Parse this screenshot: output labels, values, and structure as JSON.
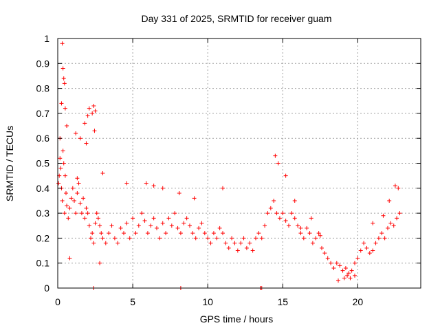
{
  "chart_data": {
    "type": "scatter",
    "title": "Day 331 of 2025, SRMTID for receiver guam",
    "xlabel": "GPS time / hours",
    "ylabel": "SRMTID / TECUs",
    "xlim": [
      0,
      24.2
    ],
    "ylim": [
      0,
      1
    ],
    "xticks": [
      0,
      5,
      10,
      15,
      20
    ],
    "xtick_labels": [
      "0",
      "5",
      "10",
      "15",
      "20"
    ],
    "yticks": [
      0,
      0.1,
      0.2,
      0.3,
      0.4,
      0.5,
      0.6,
      0.7,
      0.8,
      0.9,
      1
    ],
    "ytick_labels": [
      "0",
      "0.1",
      "0.2",
      "0.3",
      "0.4",
      "0.5",
      "0.6",
      "0.7",
      "0.8",
      "0.9",
      "1"
    ],
    "grid": true,
    "marker": "+",
    "color": "#ff0000",
    "series": [
      {
        "name": "SRMTID",
        "x": [
          0.05,
          0.1,
          0.15,
          0.2,
          0.25,
          0.3,
          0.35,
          0.4,
          0.45,
          0.5,
          0.55,
          0.6,
          0.7,
          0.8,
          0.9,
          1.0,
          1.1,
          1.2,
          1.3,
          1.4,
          1.5,
          1.6,
          1.7,
          1.8,
          1.9,
          2.0,
          2.1,
          2.2,
          2.3,
          2.4,
          2.5,
          2.6,
          2.7,
          2.8,
          2.9,
          3.0,
          3.2,
          3.4,
          3.6,
          3.8,
          4.0,
          4.2,
          4.4,
          4.6,
          4.8,
          5.0,
          5.2,
          5.4,
          5.6,
          5.8,
          6.0,
          6.2,
          6.4,
          6.6,
          6.8,
          7.0,
          7.2,
          7.4,
          7.6,
          7.8,
          8.0,
          8.2,
          8.4,
          8.6,
          8.8,
          9.0,
          9.2,
          9.4,
          9.6,
          9.8,
          10.0,
          10.2,
          10.4,
          10.6,
          10.8,
          11.0,
          11.2,
          11.4,
          11.6,
          11.8,
          12.0,
          12.2,
          12.4,
          12.6,
          12.8,
          13.0,
          13.2,
          13.4,
          13.6,
          13.8,
          14.0,
          14.2,
          14.4,
          14.6,
          14.8,
          15.0,
          15.2,
          15.4,
          15.6,
          15.8,
          16.0,
          16.2,
          16.4,
          16.6,
          16.8,
          17.0,
          17.2,
          17.4,
          17.6,
          17.8,
          18.0,
          18.2,
          18.4,
          18.6,
          18.8,
          19.0,
          19.2,
          19.4,
          19.6,
          19.8,
          20.0,
          20.2,
          20.4,
          20.6,
          20.8,
          21.0,
          21.2,
          21.4,
          21.6,
          21.8,
          22.0,
          22.2,
          22.4,
          22.6,
          22.8,
          0.3,
          0.35,
          0.4,
          0.45,
          0.25,
          0.5,
          0.15,
          0.6,
          1.2,
          1.5,
          1.8,
          2.0,
          2.1,
          2.3,
          2.4,
          2.5,
          2.45,
          1.9,
          1.3,
          0.8,
          2.8,
          3.0,
          4.6,
          5.9,
          6.4,
          7.0,
          8.1,
          9.1,
          11.0,
          14.5,
          14.7,
          15.2,
          15.8,
          16.2,
          16.9,
          17.5,
          18.7,
          19.1,
          19.3,
          19.5,
          19.8,
          21.0,
          21.7,
          22.1,
          22.5,
          22.7,
          2.4,
          8.2,
          13.5,
          13.6
        ],
        "y": [
          0.42,
          0.45,
          0.52,
          0.48,
          0.4,
          0.35,
          0.55,
          0.5,
          0.3,
          0.45,
          0.38,
          0.33,
          0.28,
          0.32,
          0.36,
          0.4,
          0.35,
          0.3,
          0.38,
          0.42,
          0.34,
          0.3,
          0.36,
          0.28,
          0.32,
          0.3,
          0.25,
          0.2,
          0.22,
          0.18,
          0.26,
          0.3,
          0.28,
          0.25,
          0.22,
          0.2,
          0.18,
          0.22,
          0.25,
          0.2,
          0.18,
          0.24,
          0.22,
          0.26,
          0.2,
          0.28,
          0.22,
          0.25,
          0.3,
          0.27,
          0.22,
          0.25,
          0.28,
          0.24,
          0.2,
          0.26,
          0.22,
          0.28,
          0.25,
          0.3,
          0.24,
          0.22,
          0.26,
          0.28,
          0.25,
          0.22,
          0.2,
          0.24,
          0.26,
          0.22,
          0.2,
          0.18,
          0.22,
          0.2,
          0.24,
          0.22,
          0.18,
          0.16,
          0.2,
          0.18,
          0.15,
          0.18,
          0.2,
          0.16,
          0.18,
          0.15,
          0.2,
          0.22,
          0.2,
          0.25,
          0.3,
          0.32,
          0.35,
          0.3,
          0.28,
          0.3,
          0.27,
          0.25,
          0.3,
          0.28,
          0.25,
          0.22,
          0.2,
          0.24,
          0.22,
          0.18,
          0.2,
          0.22,
          0.16,
          0.14,
          0.12,
          0.1,
          0.08,
          0.1,
          0.09,
          0.07,
          0.08,
          0.06,
          0.07,
          0.1,
          0.12,
          0.15,
          0.18,
          0.16,
          0.14,
          0.15,
          0.18,
          0.2,
          0.22,
          0.2,
          0.24,
          0.26,
          0.25,
          0.28,
          0.3,
          0.98,
          0.88,
          0.84,
          0.82,
          0.74,
          0.72,
          0.6,
          0.65,
          0.62,
          0.6,
          0.66,
          0.69,
          0.72,
          0.7,
          0.73,
          0.71,
          0.63,
          0.58,
          0.44,
          0.12,
          0.1,
          0.46,
          0.42,
          0.42,
          0.41,
          0.4,
          0.38,
          0.36,
          0.4,
          0.53,
          0.5,
          0.45,
          0.35,
          0.24,
          0.28,
          0.21,
          0.03,
          0.04,
          0.05,
          0.04,
          0.05,
          0.26,
          0.29,
          0.35,
          0.41,
          0.4,
          0.0,
          0.0,
          0.0,
          0.0
        ]
      }
    ]
  }
}
